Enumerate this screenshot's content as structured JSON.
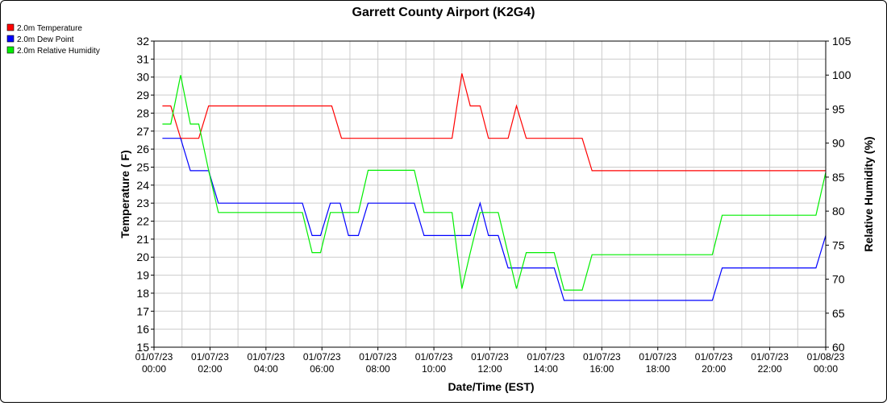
{
  "chart_data": {
    "type": "line",
    "title": "Garrett County Airport (K2G4)",
    "xlabel": "Date/Time (EST)",
    "ylabel": "Temperature ( F)",
    "y2label": "Relative Humidity (%)",
    "xlim_hours": [
      0,
      24
    ],
    "ylim": [
      15,
      32
    ],
    "y2lim": [
      60,
      105
    ],
    "grid": true,
    "legend_position": "top-left",
    "x_ticks": [
      {
        "h": 0,
        "date": "01/07/23",
        "time": "00:00"
      },
      {
        "h": 2,
        "date": "01/07/23",
        "time": "02:00"
      },
      {
        "h": 4,
        "date": "01/07/23",
        "time": "04:00"
      },
      {
        "h": 6,
        "date": "01/07/23",
        "time": "06:00"
      },
      {
        "h": 8,
        "date": "01/07/23",
        "time": "08:00"
      },
      {
        "h": 10,
        "date": "01/07/23",
        "time": "10:00"
      },
      {
        "h": 12,
        "date": "01/07/23",
        "time": "12:00"
      },
      {
        "h": 14,
        "date": "01/07/23",
        "time": "14:00"
      },
      {
        "h": 16,
        "date": "01/07/23",
        "time": "16:00"
      },
      {
        "h": 18,
        "date": "01/07/23",
        "time": "18:00"
      },
      {
        "h": 20,
        "date": "01/07/23",
        "time": "20:00"
      },
      {
        "h": 22,
        "date": "01/07/23",
        "time": "22:00"
      },
      {
        "h": 24,
        "date": "01/08/23",
        "time": "00:00"
      }
    ],
    "y_ticks": [
      15,
      16,
      17,
      18,
      19,
      20,
      21,
      22,
      23,
      24,
      25,
      26,
      27,
      28,
      29,
      30,
      31,
      32
    ],
    "y2_ticks": [
      60,
      65,
      70,
      75,
      80,
      85,
      90,
      95,
      100,
      105
    ],
    "series": [
      {
        "name": "2.0m Temperature",
        "color": "#ff0000",
        "axis": "left",
        "x": [
          0.3,
          0.6,
          0.95,
          1.3,
          1.6,
          1.95,
          2.3,
          6.35,
          6.7,
          7.0,
          10.65,
          11.0,
          11.3,
          11.65,
          11.95,
          12.3,
          12.65,
          12.95,
          13.3,
          15.3,
          15.65,
          24.0
        ],
        "y": [
          28.4,
          28.4,
          26.6,
          26.6,
          26.6,
          28.4,
          28.4,
          28.4,
          26.6,
          26.6,
          26.6,
          30.2,
          28.4,
          28.4,
          26.6,
          26.6,
          26.6,
          28.4,
          26.6,
          26.6,
          24.8,
          24.8
        ]
      },
      {
        "name": "2.0m Dew Point",
        "color": "#0000ff",
        "axis": "left",
        "x": [
          0.3,
          0.95,
          1.3,
          1.95,
          2.3,
          5.3,
          5.65,
          5.95,
          6.3,
          6.65,
          6.95,
          7.3,
          7.65,
          9.3,
          9.65,
          11.3,
          11.65,
          11.95,
          12.3,
          12.65,
          13.3,
          14.3,
          14.65,
          19.95,
          20.3,
          23.65,
          24.0
        ],
        "y": [
          26.6,
          26.6,
          24.8,
          24.8,
          23.0,
          23.0,
          21.2,
          21.2,
          23.0,
          23.0,
          21.2,
          21.2,
          23.0,
          23.0,
          21.2,
          21.2,
          23.0,
          21.2,
          21.2,
          19.4,
          19.4,
          19.4,
          17.6,
          17.6,
          19.4,
          19.4,
          21.2
        ]
      },
      {
        "name": "2.0m Relative Humidity",
        "color": "#00ee00",
        "axis": "right",
        "x": [
          0.3,
          0.6,
          0.95,
          1.3,
          1.6,
          1.95,
          2.3,
          5.3,
          5.65,
          5.95,
          6.3,
          6.65,
          6.95,
          7.3,
          7.65,
          9.3,
          9.65,
          10.65,
          11.0,
          11.3,
          11.65,
          11.95,
          12.3,
          12.95,
          13.3,
          14.3,
          14.65,
          15.3,
          15.65,
          19.95,
          20.3,
          23.65,
          24.0
        ],
        "y": [
          92.8,
          92.8,
          100.0,
          92.8,
          92.8,
          86.0,
          79.8,
          79.8,
          73.9,
          73.9,
          79.8,
          79.8,
          79.8,
          79.8,
          86.0,
          86.0,
          79.8,
          79.8,
          68.6,
          73.9,
          79.8,
          79.8,
          79.8,
          68.6,
          73.9,
          73.9,
          68.4,
          68.4,
          73.6,
          73.6,
          79.4,
          79.4,
          85.7
        ]
      }
    ]
  }
}
